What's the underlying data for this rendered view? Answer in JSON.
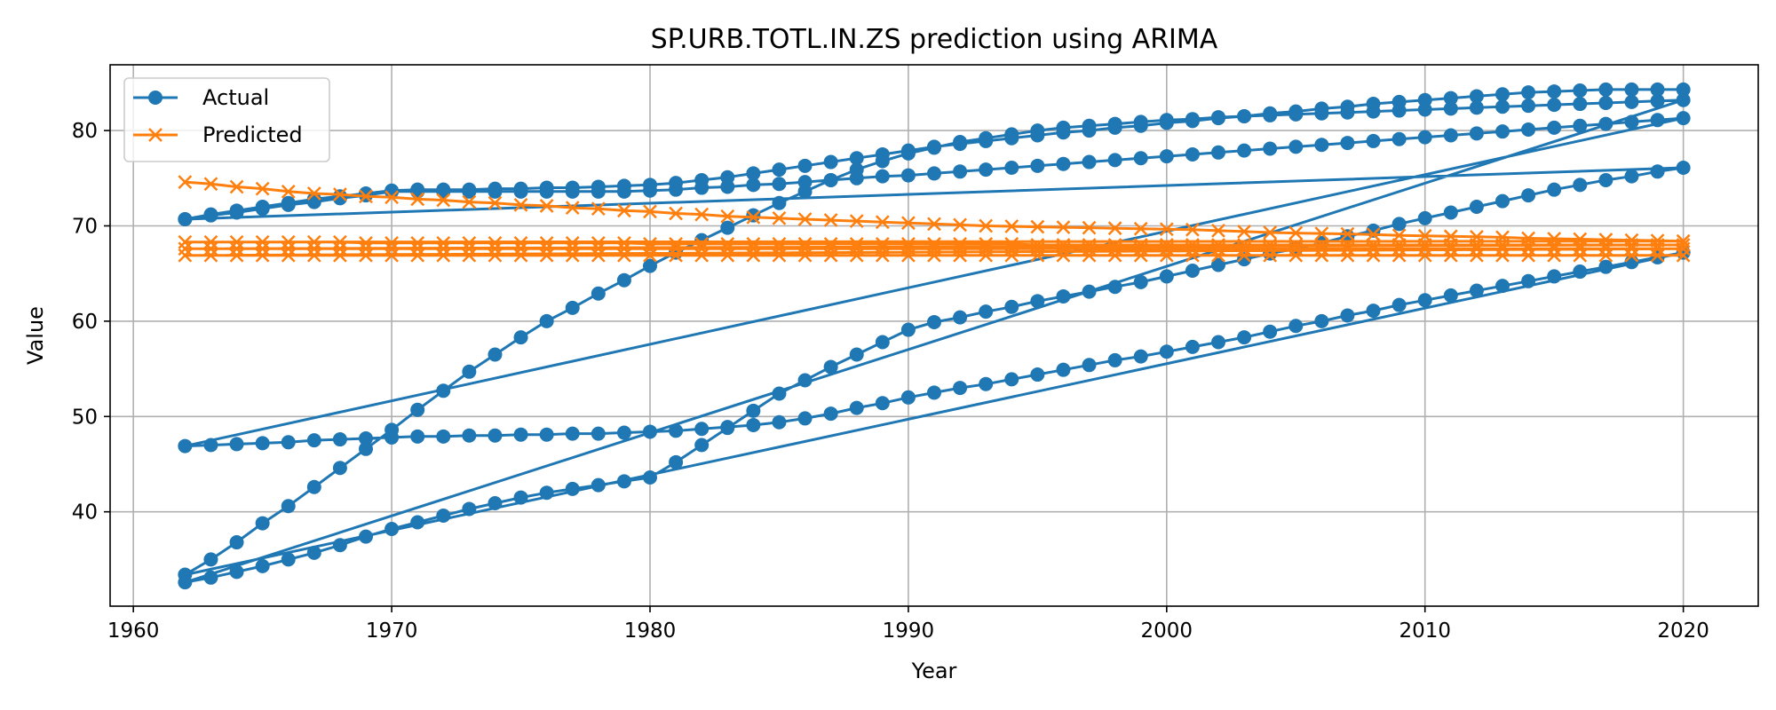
{
  "chart_data": {
    "type": "line",
    "title": "SP.URB.TOTL.IN.ZS prediction using ARIMA",
    "xlabel": "Year",
    "ylabel": "Value",
    "xlim": [
      1959.1,
      2022.9
    ],
    "ylim": [
      30.1,
      86.9
    ],
    "xticks": [
      1960,
      1970,
      1980,
      1990,
      2000,
      2010,
      2020
    ],
    "yticks": [
      40,
      50,
      60,
      70,
      80
    ],
    "grid": true,
    "legend_position": "top-left",
    "colors": {
      "actual": "#1f77b4",
      "predicted": "#ff7f0e"
    },
    "series": [
      {
        "name": "Actual",
        "marker": "circle",
        "color": "#1f77b4",
        "x": [
          1962,
          1963,
          1964,
          1965,
          1966,
          1967,
          1968,
          1969,
          1970,
          1971,
          1972,
          1973,
          1974,
          1975,
          1976,
          1977,
          1978,
          1979,
          1980,
          1981,
          1982,
          1983,
          1984,
          1985,
          1986,
          1987,
          1988,
          1989,
          1990,
          1991,
          1992,
          1993,
          1994,
          1995,
          1996,
          1997,
          1998,
          1999,
          2000,
          2001,
          2002,
          2003,
          2004,
          2005,
          2006,
          2007,
          2008,
          2009,
          2010,
          2011,
          2012,
          2013,
          2014,
          2015,
          2016,
          2017,
          2018,
          2019,
          2020,
          1962,
          1963,
          1964,
          1965,
          1966,
          1967,
          1968,
          1969,
          1970,
          1971,
          1972,
          1973,
          1974,
          1975,
          1976,
          1977,
          1978,
          1979,
          1980,
          1981,
          1982,
          1983,
          1984,
          1985,
          1986,
          1987,
          1988,
          1989,
          1990,
          1991,
          1992,
          1993,
          1994,
          1995,
          1996,
          1997,
          1998,
          1999,
          2000,
          2001,
          2002,
          2003,
          2004,
          2005,
          2006,
          2007,
          2008,
          2009,
          2010,
          2011,
          2012,
          2013,
          2014,
          2015,
          2016,
          2017,
          2018,
          2019,
          2020,
          1962,
          1963,
          1964,
          1965,
          1966,
          1967,
          1968,
          1969,
          1970,
          1971,
          1972,
          1973,
          1974,
          1975,
          1976,
          1977,
          1978,
          1979,
          1980,
          1981,
          1982,
          1983,
          1984,
          1985,
          1986,
          1987,
          1988,
          1989,
          1990,
          1991,
          1992,
          1993,
          1994,
          1995,
          1996,
          1997,
          1998,
          1999,
          2000,
          2001,
          2002,
          2003,
          2004,
          2005,
          2006,
          2007,
          2008,
          2009,
          2010,
          2011,
          2012,
          2013,
          2014,
          2015,
          2016,
          2017,
          2018,
          2019,
          2020,
          1962,
          1963,
          1964,
          1965,
          1966,
          1967,
          1968,
          1969,
          1970,
          1971,
          1972,
          1973,
          1974,
          1975,
          1976,
          1977,
          1978,
          1979,
          1980,
          1981,
          1982,
          1983,
          1984,
          1985,
          1986,
          1987,
          1988,
          1989,
          1990,
          1991,
          1992,
          1993,
          1994,
          1995,
          1996,
          1997,
          1998,
          1999,
          2000,
          2001,
          2002,
          2003,
          2004,
          2005,
          2006,
          2007,
          2008,
          2009,
          2010,
          2011,
          2012,
          2013,
          2014,
          2015,
          2016,
          2017,
          2018,
          2019,
          2020,
          1962,
          1963,
          1964,
          1965,
          1966,
          1967,
          1968,
          1969,
          1970,
          1971,
          1972,
          1973,
          1974,
          1975,
          1976,
          1977,
          1978,
          1979,
          1980,
          1981,
          1982,
          1983,
          1984,
          1985,
          1986,
          1987,
          1988,
          1989,
          1990,
          1991,
          1992,
          1993,
          1994,
          1995,
          1996,
          1997,
          1998,
          1999,
          2000,
          2001,
          2002,
          2003,
          2004,
          2005,
          2006,
          2007,
          2008,
          2009,
          2010,
          2011,
          2012,
          2013,
          2014,
          2015,
          2016,
          2017,
          2018,
          2019,
          2020
        ],
        "y": [
          70.7,
          71.1,
          71.4,
          71.8,
          72.2,
          72.5,
          72.9,
          73.2,
          73.6,
          73.6,
          73.6,
          73.6,
          73.6,
          73.6,
          73.6,
          73.6,
          73.6,
          73.6,
          73.7,
          73.8,
          74.0,
          74.1,
          74.3,
          74.4,
          74.6,
          74.8,
          75.0,
          75.2,
          75.3,
          75.5,
          75.7,
          75.9,
          76.1,
          76.3,
          76.5,
          76.7,
          76.9,
          77.1,
          77.3,
          77.5,
          77.7,
          77.9,
          78.1,
          78.3,
          78.5,
          78.7,
          78.9,
          79.1,
          79.3,
          79.5,
          79.7,
          79.9,
          80.1,
          80.3,
          80.5,
          80.7,
          80.9,
          81.1,
          81.3,
          46.9,
          47.0,
          47.1,
          47.2,
          47.3,
          47.5,
          47.6,
          47.7,
          47.8,
          47.9,
          47.9,
          48.0,
          48.0,
          48.1,
          48.1,
          48.2,
          48.2,
          48.3,
          48.4,
          48.5,
          48.7,
          48.9,
          49.1,
          49.4,
          49.8,
          50.3,
          50.9,
          51.4,
          52.0,
          52.5,
          53.0,
          53.4,
          53.9,
          54.4,
          54.9,
          55.4,
          55.9,
          56.3,
          56.8,
          57.3,
          57.8,
          58.3,
          58.9,
          59.5,
          60.0,
          60.6,
          61.1,
          61.7,
          62.2,
          62.7,
          63.2,
          63.7,
          64.2,
          64.7,
          65.2,
          65.7,
          66.2,
          66.7,
          67.2,
          33.4,
          35.0,
          36.8,
          38.8,
          40.6,
          42.6,
          44.6,
          46.6,
          48.6,
          50.7,
          52.7,
          54.7,
          56.5,
          58.3,
          60.0,
          61.4,
          62.9,
          64.3,
          65.8,
          67.2,
          68.5,
          69.8,
          71.1,
          72.4,
          73.6,
          74.8,
          75.9,
          76.8,
          77.6,
          78.2,
          78.8,
          79.2,
          79.6,
          80.0,
          80.3,
          80.5,
          80.7,
          80.9,
          81.1,
          81.2,
          81.4,
          81.5,
          81.6,
          81.7,
          81.8,
          81.9,
          82.0,
          82.1,
          82.2,
          82.3,
          82.4,
          82.5,
          82.6,
          82.7,
          82.8,
          82.9,
          83.0,
          83.1,
          83.2,
          32.6,
          33.1,
          33.7,
          34.3,
          35.0,
          35.7,
          36.5,
          37.4,
          38.2,
          38.9,
          39.6,
          40.3,
          40.9,
          41.5,
          42.0,
          42.4,
          42.8,
          43.2,
          43.6,
          45.2,
          47.0,
          48.8,
          50.6,
          52.4,
          53.8,
          55.2,
          56.5,
          57.8,
          59.1,
          59.9,
          60.4,
          61.0,
          61.5,
          62.1,
          62.6,
          63.1,
          63.6,
          64.1,
          64.7,
          65.3,
          65.9,
          66.5,
          67.1,
          67.6,
          68.2,
          68.9,
          69.5,
          70.2,
          70.8,
          71.4,
          72.0,
          72.6,
          73.2,
          73.8,
          74.3,
          74.8,
          75.2,
          75.7,
          76.1,
          70.7,
          71.2,
          71.6,
          72.0,
          72.4,
          72.8,
          73.1,
          73.4,
          73.7,
          73.8,
          73.8,
          73.8,
          73.9,
          73.9,
          74.0,
          74.0,
          74.1,
          74.2,
          74.3,
          74.5,
          74.8,
          75.1,
          75.5,
          75.9,
          76.3,
          76.7,
          77.1,
          77.5,
          77.9,
          78.3,
          78.6,
          78.9,
          79.2,
          79.5,
          79.8,
          80.0,
          80.3,
          80.5,
          80.8,
          81.0,
          81.3,
          81.5,
          81.8,
          82.0,
          82.3,
          82.5,
          82.8,
          83.0,
          83.2,
          83.4,
          83.6,
          83.8,
          84.0,
          84.1,
          84.2,
          84.3,
          84.3,
          84.3,
          84.3
        ]
      },
      {
        "name": "Predicted",
        "marker": "x",
        "color": "#ff7f0e",
        "x": [
          1962,
          1963,
          1964,
          1965,
          1966,
          1967,
          1968,
          1969,
          1970,
          1971,
          1972,
          1973,
          1974,
          1975,
          1976,
          1977,
          1978,
          1979,
          1980,
          1981,
          1982,
          1983,
          1984,
          1985,
          1986,
          1987,
          1988,
          1989,
          1990,
          1991,
          1992,
          1993,
          1994,
          1995,
          1996,
          1997,
          1998,
          1999,
          2000,
          2001,
          2002,
          2003,
          2004,
          2005,
          2006,
          2007,
          2008,
          2009,
          2010,
          2011,
          2012,
          2013,
          2014,
          2015,
          2016,
          2017,
          2018,
          2019,
          2020,
          1962,
          1963,
          1964,
          1965,
          1966,
          1967,
          1968,
          1969,
          1970,
          1971,
          1972,
          1973,
          1974,
          1975,
          1976,
          1977,
          1978,
          1979,
          1980,
          1981,
          1982,
          1983,
          1984,
          1985,
          1986,
          1987,
          1988,
          1989,
          1990,
          1991,
          1992,
          1993,
          1994,
          1995,
          1996,
          1997,
          1998,
          1999,
          2000,
          2001,
          2002,
          2003,
          2004,
          2005,
          2006,
          2007,
          2008,
          2009,
          2010,
          2011,
          2012,
          2013,
          2014,
          2015,
          2016,
          2017,
          2018,
          2019,
          2020,
          1962,
          1963,
          1964,
          1965,
          1966,
          1967,
          1968,
          1969,
          1970,
          1971,
          1972,
          1973,
          1974,
          1975,
          1976,
          1977,
          1978,
          1979,
          1980,
          1981,
          1982,
          1983,
          1984,
          1985,
          1986,
          1987,
          1988,
          1989,
          1990,
          1991,
          1992,
          1993,
          1994,
          1995,
          1996,
          1997,
          1998,
          1999,
          2000,
          2001,
          2002,
          2003,
          2004,
          2005,
          2006,
          2007,
          2008,
          2009,
          2010,
          2011,
          2012,
          2013,
          2014,
          2015,
          2016,
          2017,
          2018,
          2019,
          2020,
          1962,
          1963,
          1964,
          1965,
          1966,
          1967,
          1968,
          1969,
          1970,
          1971,
          1972,
          1973,
          1974,
          1975,
          1976,
          1977,
          1978,
          1979,
          1980,
          1981,
          1982,
          1983,
          1984,
          1985,
          1986,
          1987,
          1988,
          1989,
          1990,
          1991,
          1992,
          1993,
          1994,
          1995,
          1996,
          1997,
          1998,
          1999,
          2000,
          2001,
          2002,
          2003,
          2004,
          2005,
          2006,
          2007,
          2008,
          2009,
          2010,
          2011,
          2012,
          2013,
          2014,
          2015,
          2016,
          2017,
          2018,
          2019,
          2020
        ],
        "y": [
          74.6,
          74.4,
          74.1,
          73.9,
          73.6,
          73.4,
          73.3,
          73.1,
          73.0,
          72.8,
          72.7,
          72.5,
          72.4,
          72.2,
          72.1,
          71.9,
          71.8,
          71.6,
          71.5,
          71.3,
          71.2,
          71.0,
          70.9,
          70.8,
          70.7,
          70.6,
          70.5,
          70.4,
          70.3,
          70.2,
          70.1,
          70.0,
          69.95,
          69.9,
          69.85,
          69.8,
          69.75,
          69.7,
          69.65,
          69.6,
          69.5,
          69.4,
          69.3,
          69.25,
          69.2,
          69.15,
          69.1,
          69.0,
          68.95,
          68.9,
          68.85,
          68.8,
          68.7,
          68.65,
          68.6,
          68.55,
          68.5,
          68.45,
          68.4,
          68.3,
          68.3,
          68.3,
          68.3,
          68.3,
          68.3,
          68.3,
          68.2,
          68.2,
          68.2,
          68.2,
          68.2,
          68.2,
          68.2,
          68.2,
          68.2,
          68.2,
          68.2,
          68.1,
          68.1,
          68.1,
          68.1,
          68.1,
          68.1,
          68.1,
          68.1,
          68.1,
          68.1,
          68.1,
          68.1,
          68.1,
          68.1,
          68.1,
          68.0,
          68.0,
          68.0,
          68.0,
          68.0,
          68.0,
          68.0,
          68.0,
          68.0,
          68.0,
          68.0,
          68.0,
          68.0,
          68.0,
          68.0,
          68.0,
          68.0,
          68.0,
          68.0,
          68.0,
          68.0,
          68.0,
          68.0,
          68.0,
          68.0,
          68.0,
          67.6,
          67.6,
          67.6,
          67.6,
          67.6,
          67.6,
          67.6,
          67.6,
          67.6,
          67.6,
          67.6,
          67.6,
          67.6,
          67.6,
          67.6,
          67.6,
          67.6,
          67.6,
          67.6,
          67.6,
          67.6,
          67.6,
          67.6,
          67.6,
          67.6,
          67.6,
          67.6,
          67.6,
          67.6,
          67.6,
          67.6,
          67.6,
          67.6,
          67.6,
          67.6,
          67.6,
          67.6,
          67.6,
          67.6,
          67.6,
          67.6,
          67.6,
          67.6,
          67.6,
          67.6,
          67.6,
          67.6,
          67.6,
          67.6,
          67.6,
          67.6,
          67.6,
          67.6,
          67.6,
          67.6,
          67.6,
          67.6,
          67.6,
          67.6,
          66.9,
          66.9,
          66.9,
          66.9,
          66.9,
          66.9,
          66.9,
          66.9,
          66.9,
          66.9,
          66.9,
          66.9,
          66.9,
          66.9,
          66.9,
          66.9,
          66.9,
          66.9,
          66.9,
          66.9,
          66.9,
          66.9,
          66.9,
          66.9,
          66.9,
          66.9,
          66.9,
          66.9,
          66.9,
          66.9,
          66.9,
          66.9,
          66.9,
          66.9,
          66.9,
          66.9,
          66.9,
          66.9,
          66.9,
          66.9,
          66.9,
          66.9,
          66.9,
          66.9,
          66.9,
          66.9,
          66.9,
          66.9,
          66.9,
          66.9,
          66.9,
          66.9,
          66.9,
          66.9,
          66.9,
          66.9,
          66.9,
          66.9,
          66.9
        ]
      }
    ]
  }
}
